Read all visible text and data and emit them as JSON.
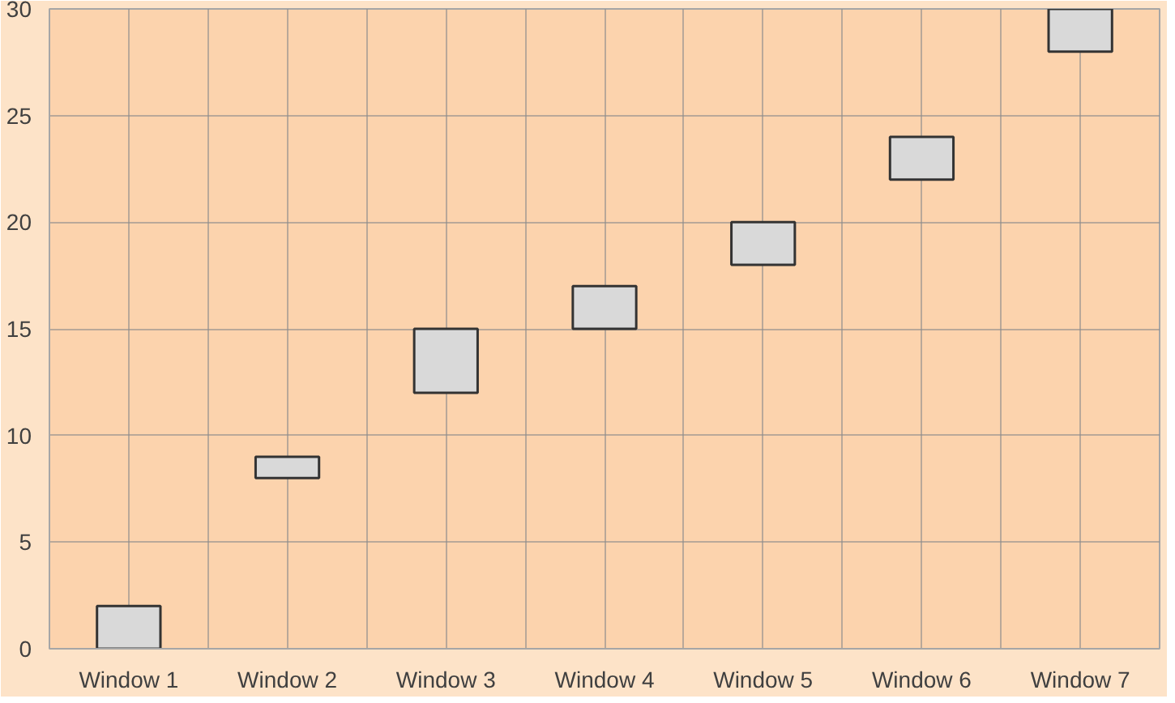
{
  "chart_data": {
    "type": "bar",
    "categories": [
      "Window 1",
      "Window 2",
      "Window 3",
      "Window 4",
      "Window 5",
      "Window 6",
      "Window 7"
    ],
    "base": [
      0,
      8,
      12,
      15,
      18,
      22,
      28
    ],
    "values": [
      2,
      1,
      3,
      2,
      2,
      2,
      2
    ],
    "color": "#d9d9d9",
    "ylim": [
      0,
      30
    ],
    "yticks": [
      0,
      5,
      10,
      15,
      20,
      25,
      30
    ],
    "grid": true
  }
}
